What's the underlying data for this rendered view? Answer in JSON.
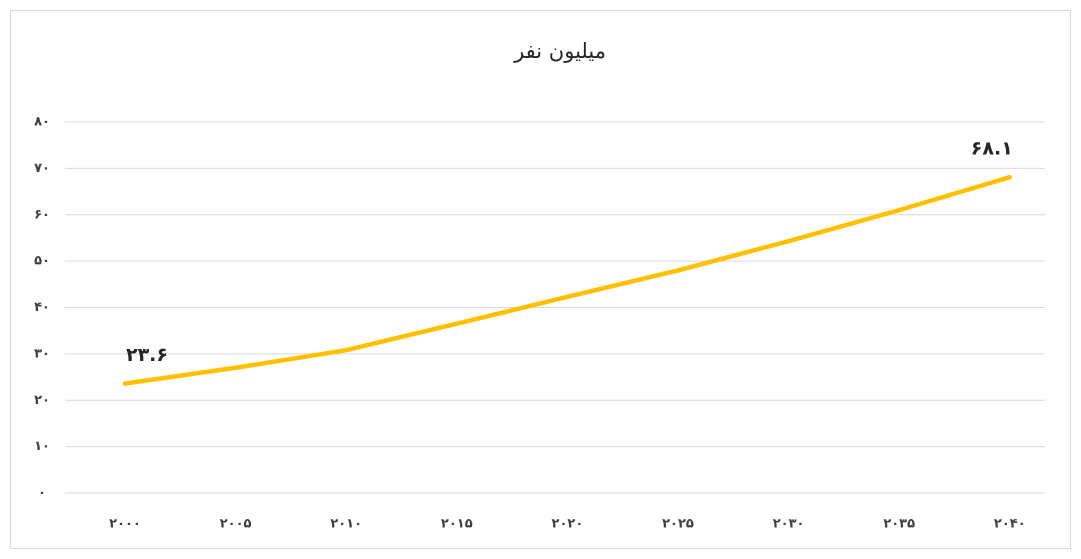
{
  "chart_data": {
    "type": "line",
    "title": "میلیون نفر",
    "categories": [
      "۲۰۰۰",
      "۲۰۰۵",
      "۲۰۱۰",
      "۲۰۱۵",
      "۲۰۲۰",
      "۲۰۲۵",
      "۲۰۳۰",
      "۲۰۳۵",
      "۲۰۴۰"
    ],
    "values": [
      23.6,
      27,
      30.8,
      36.5,
      42.3,
      48,
      54.3,
      61,
      68.1
    ],
    "value_labels": [
      "۲۳.۶",
      null,
      null,
      null,
      null,
      null,
      null,
      null,
      "۶۸.۱"
    ],
    "color": "#ffc000",
    "ylim": [
      0,
      80
    ],
    "yticks": [
      {
        "value": 0,
        "label": "۰"
      },
      {
        "value": 10,
        "label": "۱۰"
      },
      {
        "value": 20,
        "label": "۲۰"
      },
      {
        "value": 30,
        "label": "۳۰"
      },
      {
        "value": 40,
        "label": "۴۰"
      },
      {
        "value": 50,
        "label": "۵۰"
      },
      {
        "value": 60,
        "label": "۶۰"
      },
      {
        "value": 70,
        "label": "۷۰"
      },
      {
        "value": 80,
        "label": "۸۰"
      }
    ],
    "grid": true
  }
}
